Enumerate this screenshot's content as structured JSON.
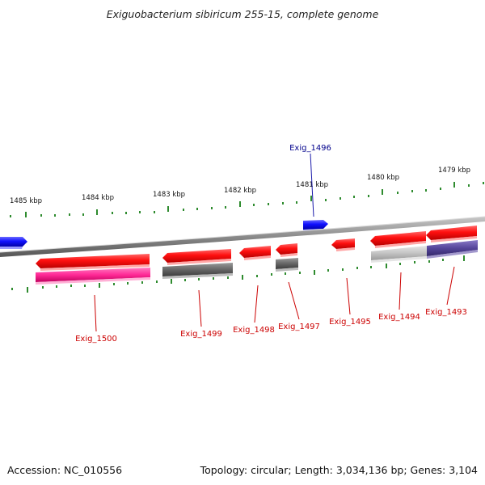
{
  "title": "Exiguobacterium sibiricum 255-15, complete genome",
  "footer": {
    "accession": "Accession: NC_010556",
    "summary": "Topology: circular; Length: 3,034,136 bp; Genes: 3,104"
  },
  "scale_labels": [
    "1485 kbp",
    "1484 kbp",
    "1483 kbp",
    "1482 kbp",
    "1481 kbp",
    "1480 kbp",
    "1479 kbp"
  ],
  "gene_labels": {
    "forward": [
      "Exig_1496"
    ],
    "reverse": [
      "Exig_1500",
      "Exig_1499",
      "Exig_1498",
      "Exig_1497",
      "Exig_1495",
      "Exig_1494",
      "Exig_1493"
    ]
  },
  "colors": {
    "backbone": "#8c8c8c",
    "forward_gene": "#1a1aff",
    "reverse_gene": "#ff1a1a",
    "forward_label": "#00008b",
    "reverse_label": "#cc0000",
    "tick": "#2e8b2e",
    "feature_magenta": "#ff3399",
    "feature_gray": "#666666",
    "feature_lightgray": "#c8c8c8",
    "feature_purple": "#5a4a9a"
  }
}
